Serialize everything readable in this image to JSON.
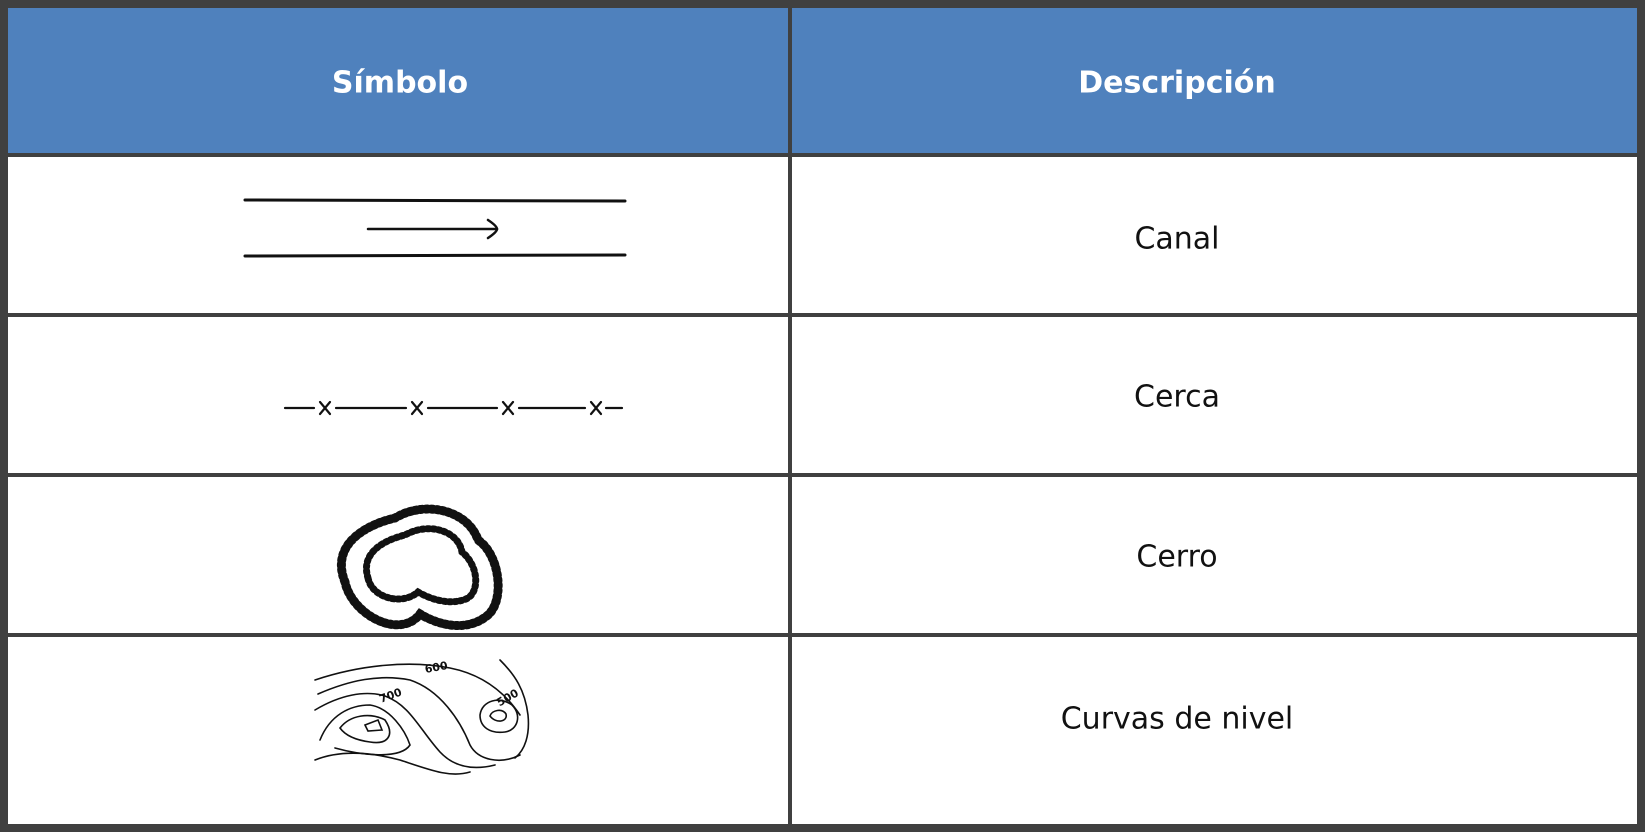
{
  "table": {
    "header": [
      "Símbolo",
      "Descripción"
    ],
    "rows": [
      {
        "description": "Canal"
      },
      {
        "description": "Cerca"
      },
      {
        "description": "Cerro"
      },
      {
        "description": "Curvas de nivel",
        "symbol_labels": [
          "600",
          "700",
          "500"
        ]
      }
    ]
  }
}
